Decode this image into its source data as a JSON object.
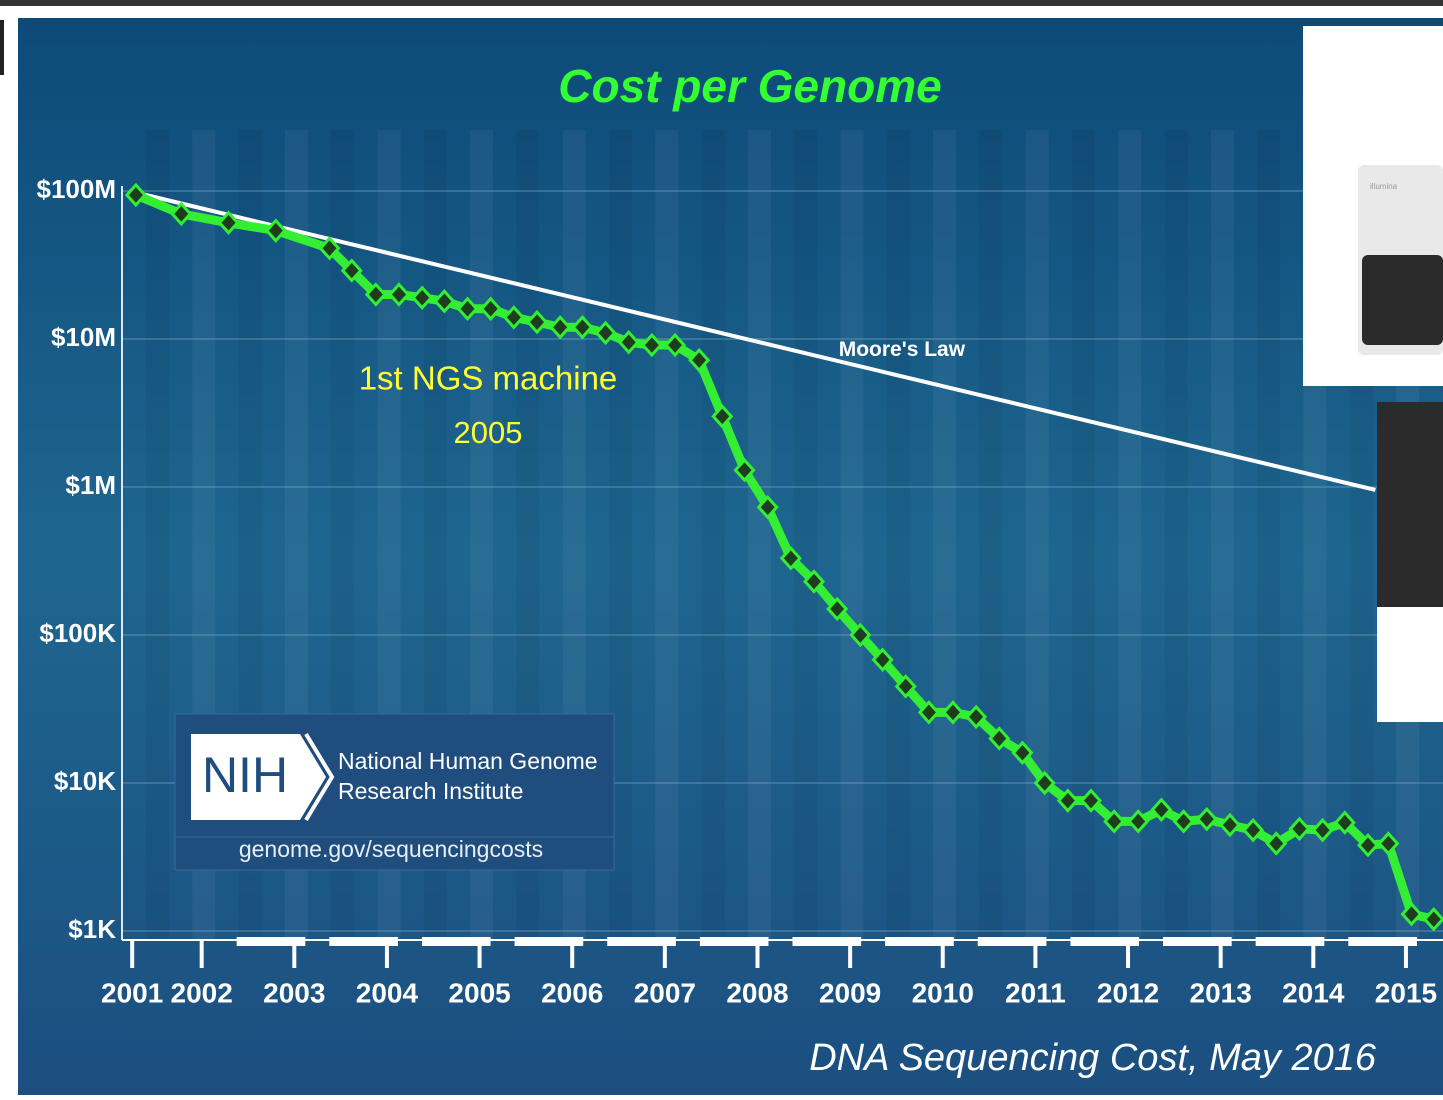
{
  "chart_data": {
    "type": "line",
    "title": "Cost per Genome",
    "log_y": true,
    "grid": true,
    "xlim": [
      2001.14,
      2015.4
    ],
    "xticks": [
      {
        "value": 2001.25,
        "label": "2001"
      },
      2002,
      2003,
      2004,
      2005,
      2006,
      2007,
      2008,
      2009,
      2010,
      2011,
      2012,
      2013,
      2014,
      2015
    ],
    "ylim": [
      1000,
      100000000
    ],
    "yticks": [
      {
        "value": 100000000,
        "label": "$100M"
      },
      {
        "value": 10000000,
        "label": "$10M"
      },
      {
        "value": 1000000,
        "label": "$1M"
      },
      {
        "value": 100000,
        "label": "$100K"
      },
      {
        "value": 10000,
        "label": "$10K"
      },
      {
        "value": 1000,
        "label": "$1K"
      }
    ],
    "series": [
      {
        "name": "Cost per Genome",
        "color": "#33ee33",
        "x": [
          2001.29,
          2001.78,
          2002.29,
          2002.8,
          2003.38,
          2003.62,
          2003.88,
          2004.13,
          2004.38,
          2004.62,
          2004.87,
          2005.12,
          2005.37,
          2005.62,
          2005.87,
          2006.11,
          2006.36,
          2006.61,
          2006.86,
          2007.11,
          2007.37,
          2007.62,
          2007.86,
          2008.11,
          2008.36,
          2008.61,
          2008.86,
          2009.11,
          2009.35,
          2009.6,
          2009.85,
          2010.11,
          2010.36,
          2010.61,
          2010.86,
          2011.1,
          2011.35,
          2011.6,
          2011.85,
          2012.11,
          2012.36,
          2012.6,
          2012.85,
          2013.1,
          2013.35,
          2013.6,
          2013.85,
          2014.1,
          2014.34,
          2014.59,
          2014.81,
          2015.06,
          2015.3
        ],
        "values": [
          94000000,
          70000000,
          61000000,
          54000000,
          41000000,
          29000000,
          20000000,
          20000000,
          19000000,
          18000000,
          16000000,
          16000000,
          14000000,
          13000000,
          12000000,
          12000000,
          11000000,
          9500000,
          9100000,
          9100000,
          7200000,
          3000000,
          1300000,
          730000,
          330000,
          230000,
          150000,
          100000,
          68000,
          45000,
          30000,
          30000,
          28000,
          20000,
          16000,
          10000,
          7600,
          7600,
          5500,
          5500,
          6600,
          5500,
          5700,
          5200,
          4800,
          3900,
          4900,
          4800,
          5400,
          3800,
          3900,
          1300,
          1200
        ]
      },
      {
        "name": "Moore's Law",
        "color": "#ffffff",
        "x": [
          2001.22,
          2014.67
        ],
        "values": [
          100000000,
          955000
        ]
      }
    ],
    "annotations": [
      "1st NGS machine",
      "2005"
    ],
    "logo": {
      "mark": "NIH",
      "line1": "National Human Genome",
      "line2": "Research Institute",
      "url": "genome.gov/sequencingcosts"
    },
    "caption": "DNA Sequencing Cost, May 2016",
    "device_label": "illumina"
  }
}
